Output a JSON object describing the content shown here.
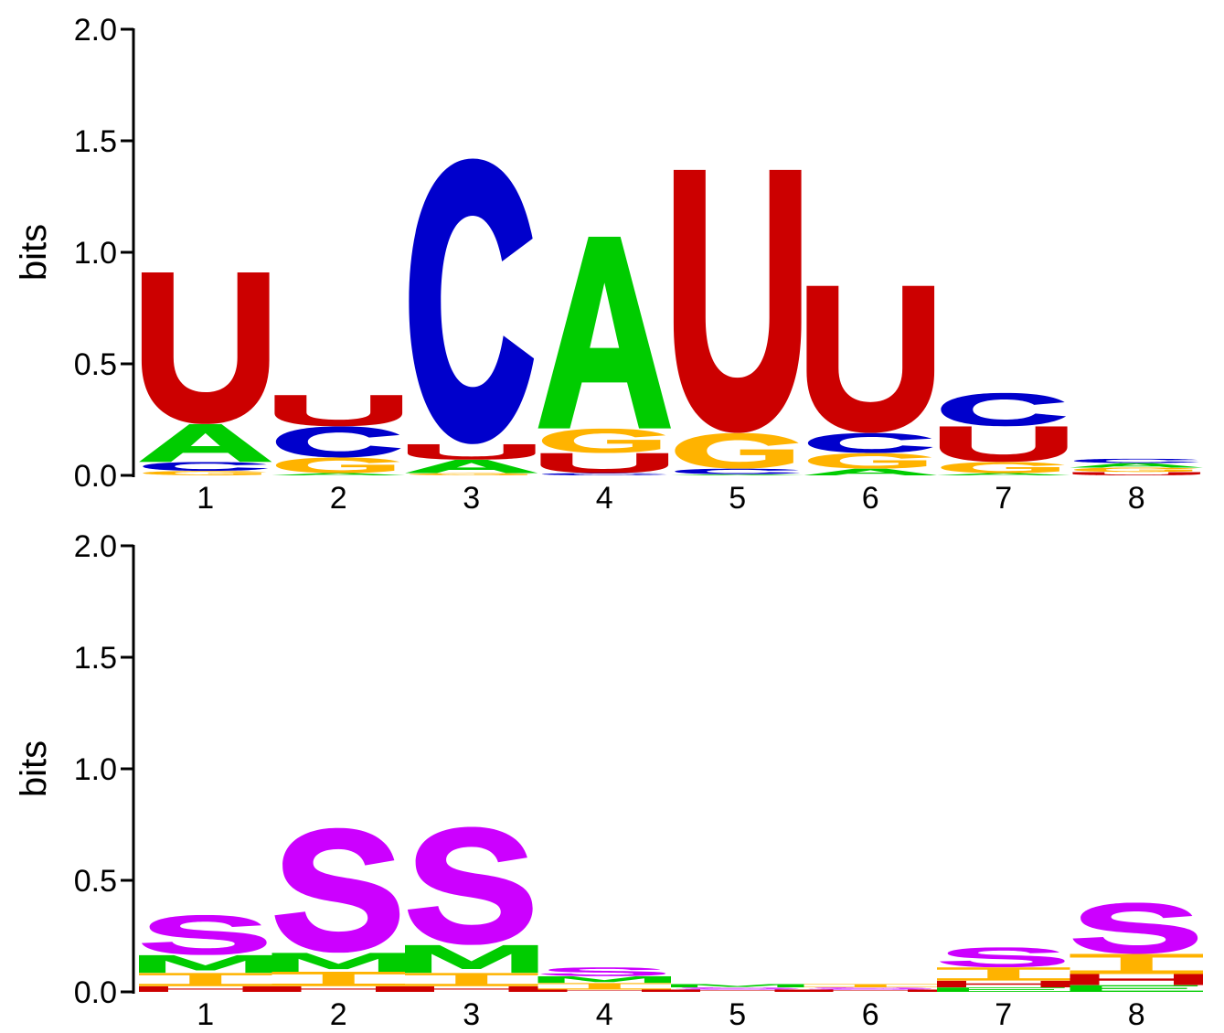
{
  "chart_data": [
    {
      "type": "sequence-logo",
      "alphabet": "RNA",
      "ylabel": "bits",
      "ylim": [
        0,
        2.0
      ],
      "yticks": [
        "0.0",
        "0.5",
        "1.0",
        "1.5",
        "2.0"
      ],
      "positions": [
        "1",
        "2",
        "3",
        "4",
        "5",
        "6",
        "7",
        "8"
      ],
      "colors": {
        "A": "#00CC00",
        "C": "#0000CC",
        "G": "#FFB300",
        "U": "#CC0000"
      },
      "stacks": [
        [
          [
            "G",
            0.02
          ],
          [
            "C",
            0.04
          ],
          [
            "A",
            0.17
          ],
          [
            "U",
            0.68
          ]
        ],
        [
          [
            "A",
            0.01
          ],
          [
            "G",
            0.07
          ],
          [
            "C",
            0.14
          ],
          [
            "U",
            0.14
          ]
        ],
        [
          [
            "G",
            0.01
          ],
          [
            "A",
            0.06
          ],
          [
            "U",
            0.07
          ],
          [
            "C",
            1.28
          ]
        ],
        [
          [
            "C",
            0.01
          ],
          [
            "U",
            0.09
          ],
          [
            "G",
            0.11
          ],
          [
            "A",
            0.86
          ]
        ],
        [
          [
            "A",
            0.005
          ],
          [
            "C",
            0.025
          ],
          [
            "G",
            0.16
          ],
          [
            "U",
            1.18
          ]
        ],
        [
          [
            "A",
            0.03
          ],
          [
            "G",
            0.07
          ],
          [
            "C",
            0.09
          ],
          [
            "U",
            0.66
          ]
        ],
        [
          [
            "A",
            0.01
          ],
          [
            "G",
            0.05
          ],
          [
            "U",
            0.16
          ],
          [
            "C",
            0.15
          ]
        ],
        [
          [
            "U",
            0.015
          ],
          [
            "G",
            0.02
          ],
          [
            "A",
            0.02
          ],
          [
            "C",
            0.02
          ]
        ]
      ]
    },
    {
      "type": "sequence-logo",
      "alphabet": "structure",
      "ylabel": "bits",
      "ylim": [
        0,
        2.0
      ],
      "yticks": [
        "0.0",
        "0.5",
        "1.0",
        "1.5",
        "2.0"
      ],
      "positions": [
        "1",
        "2",
        "3",
        "4",
        "5",
        "6",
        "7",
        "8"
      ],
      "colors": {
        "S": "#CC00FF",
        "M": "#00CC00",
        "I": "#FFB300",
        "H": "#CC0000",
        "B": "#CC0000",
        "E": "#00CC00"
      },
      "stacks": [
        [
          [
            "H",
            0.025
          ],
          [
            "I",
            0.06
          ],
          [
            "M",
            0.08
          ],
          [
            "S",
            0.18
          ]
        ],
        [
          [
            "H",
            0.025
          ],
          [
            "I",
            0.065
          ],
          [
            "M",
            0.085
          ],
          [
            "S",
            0.56
          ]
        ],
        [
          [
            "H",
            0.025
          ],
          [
            "I",
            0.06
          ],
          [
            "M",
            0.125
          ],
          [
            "S",
            0.53
          ]
        ],
        [
          [
            "H",
            0.01
          ],
          [
            "I",
            0.03
          ],
          [
            "M",
            0.03
          ],
          [
            "S",
            0.04
          ]
        ],
        [
          [
            "H",
            0.01
          ],
          [
            "S",
            0.01
          ],
          [
            "M",
            0.015
          ]
        ],
        [
          [
            "H",
            0.01
          ],
          [
            "S",
            0.01
          ],
          [
            "I",
            0.015
          ]
        ],
        [
          [
            "E",
            0.02
          ],
          [
            "H",
            0.03
          ],
          [
            "I",
            0.06
          ],
          [
            "S",
            0.09
          ]
        ],
        [
          [
            "E",
            0.03
          ],
          [
            "H",
            0.05
          ],
          [
            "I",
            0.09
          ],
          [
            "S",
            0.23
          ]
        ]
      ]
    }
  ]
}
